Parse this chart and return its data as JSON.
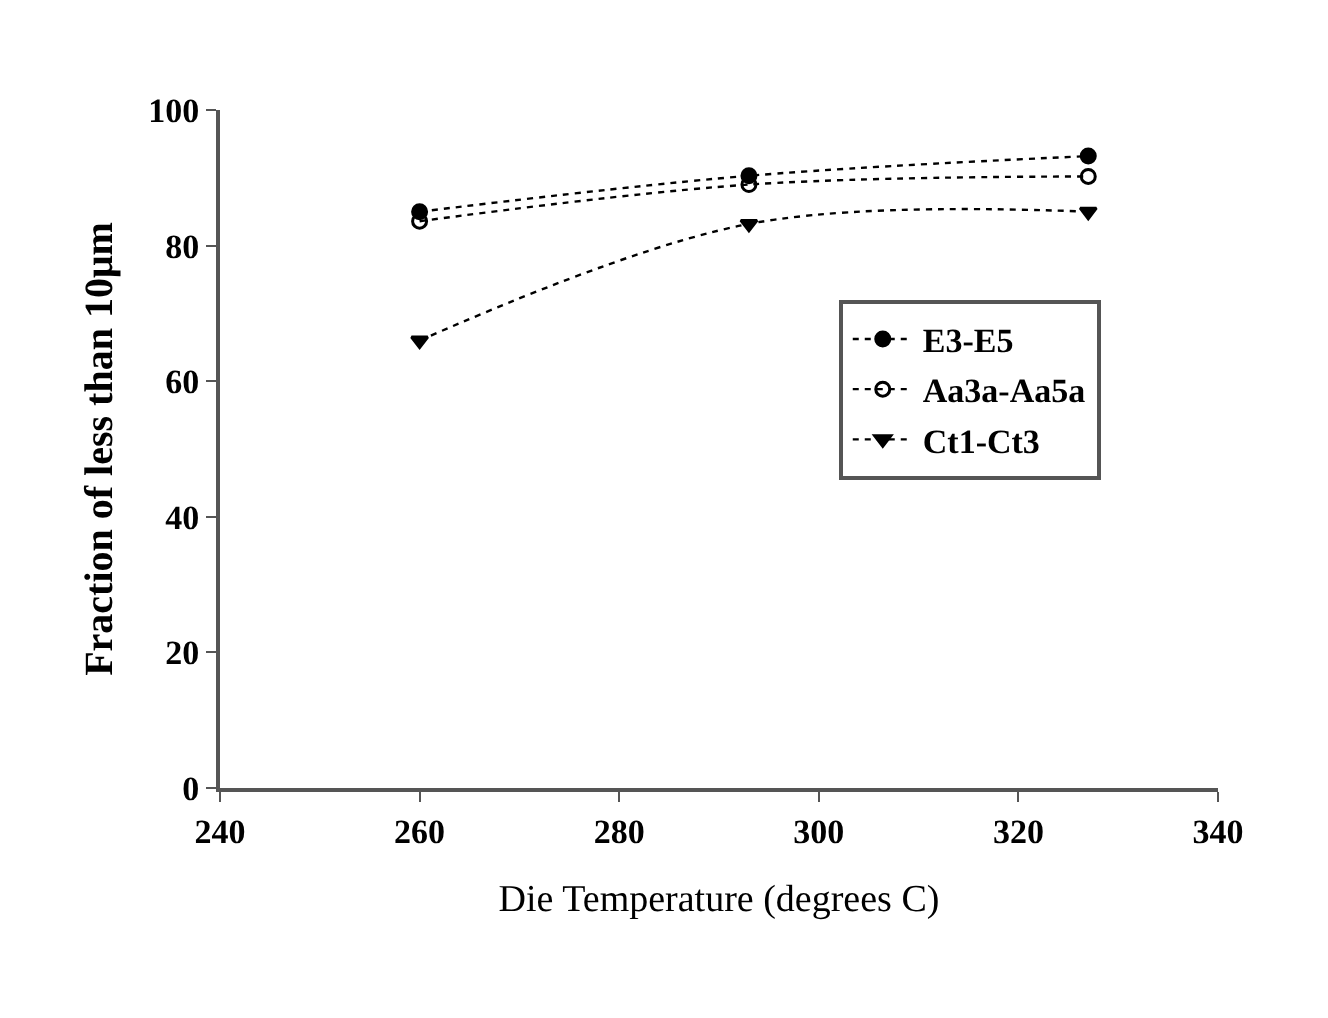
{
  "chart_data": {
    "type": "line",
    "xlabel": "Die Temperature (degrees C)",
    "ylabel": "Fraction of less than 10μm",
    "x": [
      260,
      293,
      327
    ],
    "series": [
      {
        "name": "E3-E5",
        "color": "#000000",
        "marker": "circle",
        "values": [
          85,
          90.3,
          93.2
        ]
      },
      {
        "name": "Aa3a-Aa5a",
        "color": "#000000",
        "marker": "circle-open",
        "values": [
          83.6,
          89,
          90.2
        ]
      },
      {
        "name": "Ct1-Ct3",
        "color": "#000000",
        "marker": "triangle",
        "values": [
          66,
          83.2,
          85
        ]
      }
    ],
    "xlim": [
      240,
      340
    ],
    "xticks": [
      240,
      260,
      280,
      300,
      320,
      340
    ],
    "ylim": [
      0,
      100
    ],
    "yticks": [
      0,
      20,
      40,
      60,
      80,
      100
    ],
    "grid": false,
    "legend": "right",
    "line_style": "dotted"
  }
}
